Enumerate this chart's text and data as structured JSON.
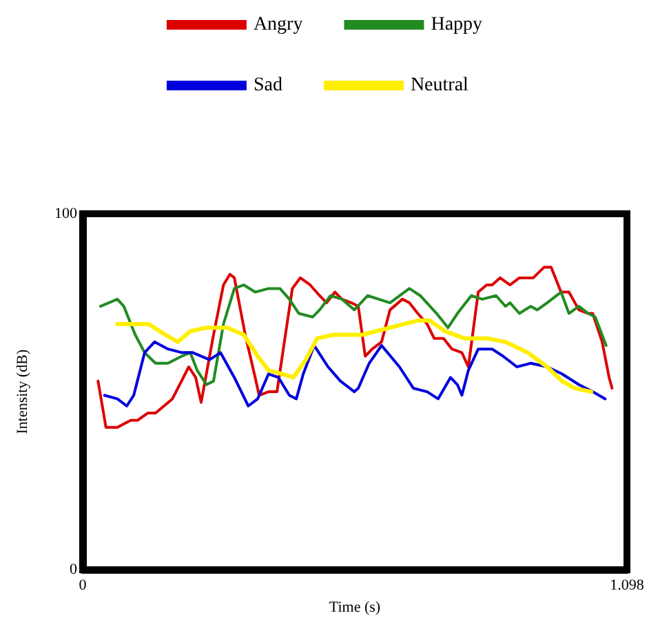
{
  "chart_data": {
    "type": "line",
    "xlabel": "Time (s)",
    "ylabel": "Intensity (dB)",
    "xlim": [
      0,
      1.098
    ],
    "xticks": [
      0,
      1.098
    ],
    "ylim": [
      0,
      100
    ],
    "yticks": [
      0,
      100
    ],
    "grid": false,
    "legend": "top",
    "marker": "none",
    "line_style": "solid",
    "series": [
      {
        "name": "Angry",
        "color": "#dd0000",
        "x": [
          0.031,
          0.047,
          0.07,
          0.097,
          0.111,
          0.131,
          0.147,
          0.181,
          0.214,
          0.228,
          0.239,
          0.264,
          0.284,
          0.297,
          0.306,
          0.328,
          0.348,
          0.356,
          0.375,
          0.392,
          0.409,
          0.423,
          0.439,
          0.459,
          0.478,
          0.492,
          0.509,
          0.523,
          0.542,
          0.556,
          0.57,
          0.584,
          0.603,
          0.62,
          0.645,
          0.659,
          0.676,
          0.695,
          0.709,
          0.728,
          0.745,
          0.765,
          0.778,
          0.798,
          0.815,
          0.826,
          0.842,
          0.862,
          0.881,
          0.909,
          0.931,
          0.945,
          0.965,
          0.981,
          1.001,
          1.02,
          1.029,
          1.048,
          1.062,
          1.068
        ],
        "values": [
          53,
          40,
          40,
          42,
          42,
          44,
          44,
          48,
          57,
          54,
          47,
          66,
          80,
          83,
          82,
          66,
          54,
          49,
          50,
          50,
          66,
          79,
          82,
          80,
          77,
          75,
          78,
          76,
          75,
          74,
          60,
          62,
          64,
          73,
          76,
          75,
          72,
          69,
          65,
          65,
          62,
          61,
          57,
          78,
          80,
          80,
          82,
          80,
          82,
          82,
          85,
          85,
          78,
          78,
          73,
          72,
          72,
          64,
          54,
          51
        ]
      },
      {
        "name": "Happy",
        "color": "#228b22",
        "x": [
          0.036,
          0.07,
          0.083,
          0.106,
          0.125,
          0.147,
          0.172,
          0.2,
          0.217,
          0.231,
          0.25,
          0.264,
          0.284,
          0.306,
          0.325,
          0.348,
          0.375,
          0.398,
          0.417,
          0.436,
          0.464,
          0.478,
          0.5,
          0.523,
          0.548,
          0.575,
          0.62,
          0.659,
          0.681,
          0.714,
          0.737,
          0.756,
          0.784,
          0.806,
          0.834,
          0.853,
          0.862,
          0.881,
          0.904,
          0.917,
          0.937,
          0.965,
          0.981,
          1.001,
          1.02,
          1.034,
          1.056
        ],
        "values": [
          74,
          76,
          74,
          66,
          61,
          58,
          58,
          60,
          61,
          56,
          52,
          53,
          69,
          79,
          80,
          78,
          79,
          79,
          76,
          72,
          71,
          73,
          77,
          76,
          73,
          77,
          75,
          79,
          77,
          72,
          68,
          72,
          77,
          76,
          77,
          74,
          75,
          72,
          74,
          73,
          75,
          78,
          72,
          74,
          72,
          71,
          63
        ]
      },
      {
        "name": "Sad",
        "color": "#0000dd",
        "x": [
          0.044,
          0.07,
          0.089,
          0.103,
          0.125,
          0.145,
          0.172,
          0.2,
          0.222,
          0.256,
          0.278,
          0.306,
          0.334,
          0.353,
          0.375,
          0.395,
          0.417,
          0.431,
          0.445,
          0.467,
          0.495,
          0.52,
          0.548,
          0.556,
          0.578,
          0.603,
          0.639,
          0.667,
          0.695,
          0.717,
          0.742,
          0.756,
          0.765,
          0.778,
          0.798,
          0.826,
          0.848,
          0.876,
          0.904,
          0.937,
          0.967,
          1.001,
          1.029,
          1.054
        ],
        "values": [
          49,
          48,
          46,
          49,
          61,
          64,
          62,
          61,
          61,
          59,
          61,
          54,
          46,
          48,
          55,
          54,
          49,
          48,
          55,
          63,
          57,
          53,
          50,
          51,
          58,
          63,
          57,
          51,
          50,
          48,
          54,
          52,
          49,
          56,
          62,
          62,
          60,
          57,
          58,
          57,
          55,
          52,
          50,
          48
        ]
      },
      {
        "name": "Neutral",
        "color": "#ffee00",
        "x": [
          0.07,
          0.133,
          0.167,
          0.192,
          0.217,
          0.25,
          0.292,
          0.325,
          0.353,
          0.375,
          0.403,
          0.425,
          0.45,
          0.473,
          0.506,
          0.564,
          0.62,
          0.676,
          0.7,
          0.731,
          0.77,
          0.815,
          0.853,
          0.898,
          0.937,
          0.967,
          0.992,
          1.026
        ],
        "values": [
          69,
          69,
          66,
          64,
          67,
          68,
          68,
          66,
          60,
          56,
          55,
          54,
          59,
          65,
          66,
          66,
          68,
          70,
          70,
          67,
          65,
          65,
          64,
          61,
          57,
          53,
          51,
          50
        ]
      }
    ]
  }
}
